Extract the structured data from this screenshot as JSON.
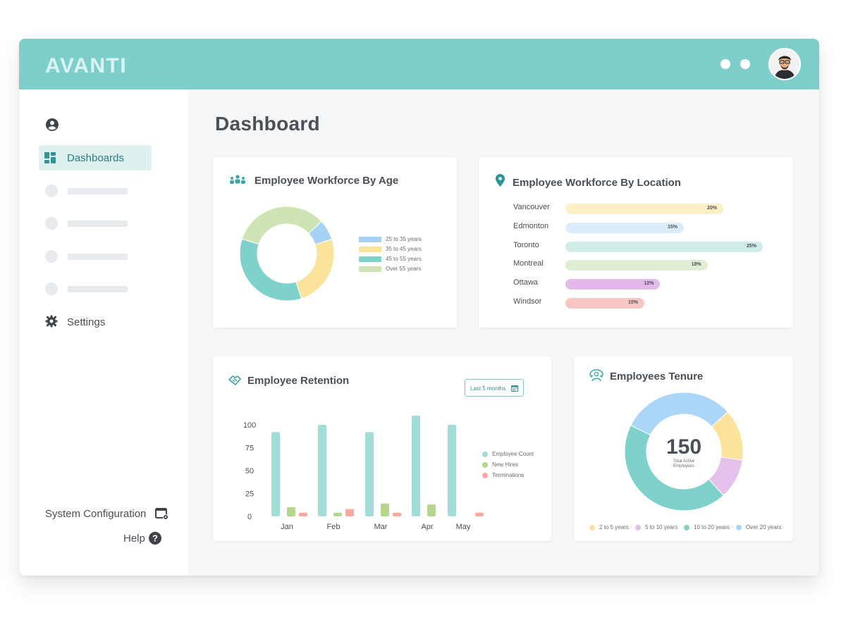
{
  "app": {
    "logo": "AVANTI",
    "avatar_icon": "user-avatar",
    "accent": "#7ecfcb"
  },
  "sidebar": {
    "user_icon": "user-circle-icon",
    "items": [
      {
        "label": "Dashboards",
        "icon": "dashboard-grid-icon",
        "active": true
      }
    ],
    "settings": {
      "label": "Settings",
      "icon": "gear-icon"
    },
    "system_configuration": {
      "label": "System Configuration",
      "icon": "window-gear-icon"
    },
    "help": {
      "label": "Help",
      "icon": "question-circle-icon"
    }
  },
  "main": {
    "title": "Dashboard"
  },
  "age_card": {
    "title": "Employee Workforce By Age",
    "icon": "team-icon",
    "legend": [
      "25 to 35 years",
      "35 to 45 years",
      "45 to 55 years",
      "Over 55 years"
    ]
  },
  "location_card": {
    "title": "Employee Workforce By Location",
    "icon": "location-pin-icon"
  },
  "retention_card": {
    "title": "Employee Retention",
    "icon": "handshake-icon",
    "range_button": "Last 5 months",
    "range_icon": "calendar-icon",
    "legend": [
      "Employee Count",
      "New Hires",
      "Terminations"
    ]
  },
  "tenure_card": {
    "title": "Employees Tenure",
    "icon": "people-icon",
    "total": "150",
    "total_label_line1": "Total Active",
    "total_label_line2": "Employees",
    "legend": [
      "2 to 5 years",
      "5 to 10 years",
      "10 to 20 years",
      "Over 20 years"
    ]
  },
  "chart_data": [
    {
      "type": "pie",
      "title": "Employee Workforce By Age",
      "categories": [
        "25 to 35 years",
        "35 to 45 years",
        "45 to 55 years",
        "Over 55 years"
      ],
      "values": [
        7,
        25,
        35,
        33
      ],
      "colors": [
        "#a7d2f4",
        "#fbe39b",
        "#7fd2cc",
        "#cfe4b4"
      ]
    },
    {
      "type": "bar",
      "title": "Employee Workforce By Location",
      "categories": [
        "Vancouver",
        "Edmonton",
        "Toronto",
        "Montreal",
        "Ottawa",
        "Windsor"
      ],
      "values": [
        20,
        15,
        25,
        18,
        12,
        10
      ],
      "labels": [
        "20%",
        "15%",
        "25%",
        "18%",
        "12%",
        "10%"
      ],
      "colors": [
        "#fdf0c6",
        "#dcecfb",
        "#cfece8",
        "#e0efd3",
        "#e3b9ea",
        "#f9c7c3"
      ]
    },
    {
      "type": "bar",
      "title": "Employee Retention",
      "categories": [
        "Jan",
        "Feb",
        "Mar",
        "Apr",
        "May"
      ],
      "series": [
        {
          "name": "Employee Count",
          "values": [
            92,
            100,
            92,
            110,
            100
          ],
          "color": "#a2ddd8"
        },
        {
          "name": "New Hires",
          "values": [
            10,
            4,
            14,
            13,
            0
          ],
          "color": "#b4d68f"
        },
        {
          "name": "Terminations",
          "values": [
            4,
            8,
            4,
            0,
            4
          ],
          "color": "#f8a9a3"
        }
      ],
      "yticks": [
        "0",
        "25",
        "50",
        "75",
        "100"
      ],
      "ylim": [
        0,
        110
      ]
    },
    {
      "type": "pie",
      "title": "Employees Tenure",
      "categories": [
        "2 to 5 years",
        "5 to 10 years",
        "10 to 20 years",
        "Over 20 years"
      ],
      "values": [
        14,
        11,
        44,
        31
      ],
      "colors": [
        "#fbe39b",
        "#e3c1ea",
        "#7fd2cc",
        "#acd6f8"
      ]
    }
  ]
}
